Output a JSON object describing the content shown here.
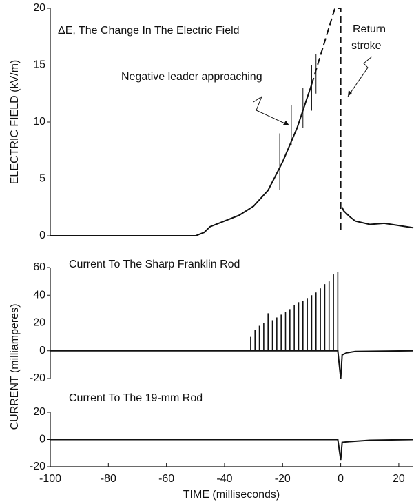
{
  "chart_data": [
    {
      "type": "line",
      "ylabel": "ELECTRIC FIELD (kV/m)",
      "ylim": [
        0,
        20
      ],
      "yticks": [
        0,
        5,
        10,
        15,
        20
      ],
      "annotations": [
        "ΔE, The Change In The Electric Field",
        "Negative leader approaching",
        "Return",
        "stroke"
      ],
      "series": [
        {
          "color": "#111111",
          "dashed": false,
          "x": [
            -100,
            -50,
            -47,
            -45,
            -40,
            -35,
            -30,
            -25,
            -20,
            -15,
            -10
          ],
          "values": [
            0,
            0,
            0.3,
            0.8,
            1.3,
            1.8,
            2.6,
            4,
            6.5,
            9.5,
            13.3
          ]
        },
        {
          "color": "#111111",
          "dashed": true,
          "x": [
            -10,
            -5,
            -2,
            0,
            0
          ],
          "values": [
            13.3,
            17.5,
            20,
            20,
            0.5
          ]
        },
        {
          "color": "#111111",
          "dashed": false,
          "x": [
            0.5,
            1,
            3,
            5,
            10,
            15,
            20,
            25
          ],
          "values": [
            2.5,
            2.2,
            1.7,
            1.3,
            1,
            1.1,
            0.9,
            0.7
          ]
        }
      ],
      "spikes": {
        "x": [
          -21,
          -17,
          -13,
          -10,
          -8.5
        ],
        "low": [
          4,
          8,
          9.5,
          11,
          12.5
        ],
        "high": [
          9,
          11.5,
          13,
          15,
          16
        ]
      }
    },
    {
      "type": "line",
      "ylabel": "CURRENT (milliamperes)",
      "ylim": [
        -20,
        60
      ],
      "yticks": [
        -20,
        0,
        20,
        40,
        60
      ],
      "annotations": [
        "Current To The Sharp Franklin Rod"
      ],
      "series": [
        {
          "color": "#111111",
          "dashed": false,
          "x": [
            -100,
            -1,
            0,
            0.5,
            2,
            5,
            25
          ],
          "values": [
            0,
            0,
            -20,
            -3,
            -1.5,
            -0.5,
            0
          ]
        }
      ],
      "spikes": {
        "x": [
          -31,
          -29.5,
          -28,
          -26.5,
          -25,
          -23.5,
          -22,
          -20.5,
          -19,
          -17.5,
          -16,
          -14.5,
          -13,
          -11.5,
          -10,
          -8.5,
          -7,
          -5.5,
          -4,
          -2.5,
          -1
        ],
        "values": [
          10,
          15,
          18,
          20,
          27,
          22,
          24,
          26,
          28,
          30,
          33,
          35,
          36,
          38,
          40,
          42,
          45,
          48,
          50,
          55,
          57
        ]
      }
    },
    {
      "type": "line",
      "xlabel": "TIME (milliseconds)",
      "xlim": [
        -100,
        25
      ],
      "xticks": [
        -100,
        -80,
        -60,
        -40,
        -20,
        0,
        20
      ],
      "ylim": [
        -20,
        20
      ],
      "yticks": [
        -20,
        0,
        20
      ],
      "annotations": [
        "Current To The 19-mm Rod"
      ],
      "series": [
        {
          "color": "#111111",
          "dashed": false,
          "x": [
            -100,
            -1,
            0,
            0.5,
            3,
            10,
            25
          ],
          "values": [
            0,
            0,
            -15,
            -2,
            -1.5,
            -0.5,
            0
          ]
        }
      ]
    }
  ]
}
